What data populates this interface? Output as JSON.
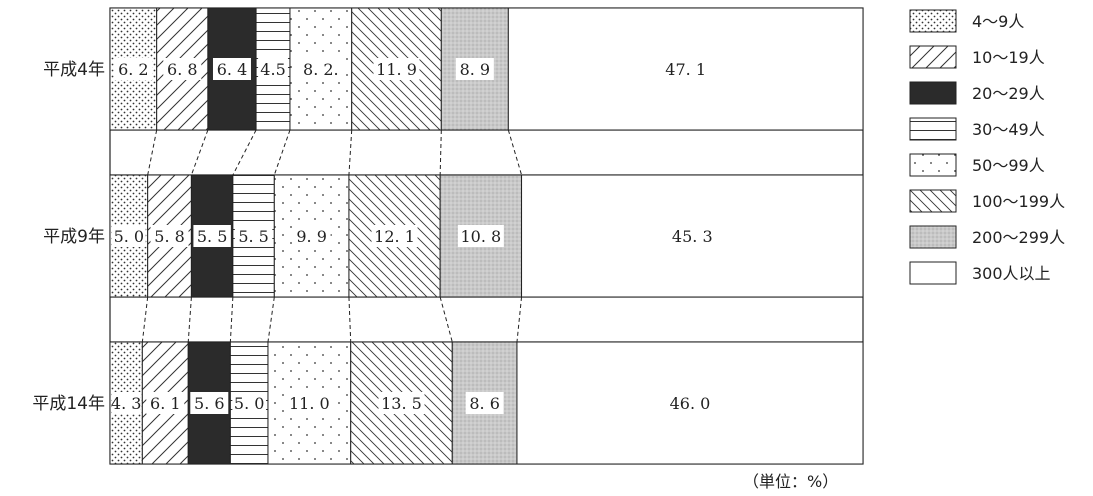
{
  "chart_data": {
    "type": "bar",
    "orientation": "horizontal",
    "stacked": "100%",
    "categories": [
      "平成4年",
      "平成9年",
      "平成14年"
    ],
    "series": [
      {
        "name": "4～9人",
        "values": [
          6.2,
          5.0,
          4.3
        ],
        "pattern": "dots-dense"
      },
      {
        "name": "10～19人",
        "values": [
          6.8,
          5.8,
          6.1
        ],
        "pattern": "diagonal-forward"
      },
      {
        "name": "20～29人",
        "values": [
          6.4,
          5.5,
          5.6
        ],
        "pattern": "solid-black"
      },
      {
        "name": "30～49人",
        "values": [
          4.5,
          5.5,
          5.0
        ],
        "pattern": "horizontal-lines"
      },
      {
        "name": "50～99人",
        "values": [
          8.2,
          9.9,
          11.0
        ],
        "pattern": "dots-sparse"
      },
      {
        "name": "100～199人",
        "values": [
          11.9,
          12.1,
          13.5
        ],
        "pattern": "diagonal-back"
      },
      {
        "name": "200～299人",
        "values": [
          8.9,
          10.8,
          8.6
        ],
        "pattern": "gray-stipple"
      },
      {
        "name": "300人以上",
        "values": [
          47.1,
          45.3,
          46.0
        ],
        "pattern": "white"
      }
    ],
    "data_labels": [
      [
        "6. 2",
        "6. 8",
        "6. 4",
        "4.5",
        "8. 2.",
        "11. 9",
        "8. 9",
        "47. 1"
      ],
      [
        "5. 0",
        "5. 8",
        "5. 5",
        "5. 5",
        "9. 9",
        "12. 1",
        "10. 8",
        "45. 3"
      ],
      [
        "4. 3",
        "6. 1",
        "5. 6",
        "5. 0",
        "11. 0",
        "13. 5",
        "8. 6",
        "46. 0"
      ]
    ],
    "unit_note": "（単位：%）",
    "legend": "right",
    "connector_lines": true
  },
  "colors": {
    "ink": "#222222",
    "black_fill": "#2b2b2b",
    "gray_fill": "#c9c9c9"
  }
}
